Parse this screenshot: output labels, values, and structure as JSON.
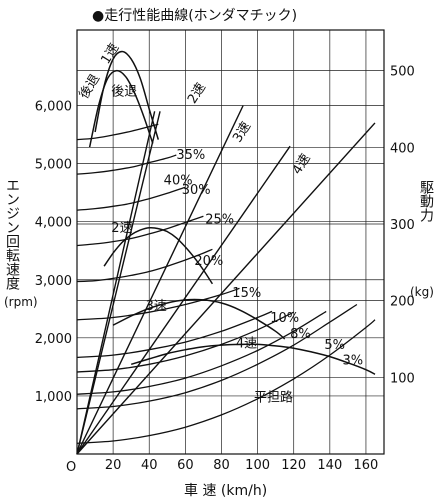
{
  "chart_data": {
    "type": "line",
    "title": "●走行性能曲線(ホンダマチック)",
    "xlabel": "車 速 (km/h)",
    "ylabel_left": "エンジン回転速度",
    "ylabel_left_unit": "(rpm)",
    "ylabel_right": "駆動力",
    "ylabel_right_unit": "(kg)",
    "origin_label": "O",
    "x_axis": {
      "min": 0,
      "max": 170,
      "ticks": [
        20,
        40,
        60,
        80,
        100,
        120,
        140,
        160
      ],
      "tick_labels": [
        "20",
        "40",
        "60",
        "80",
        "100",
        "120",
        "140",
        "160"
      ]
    },
    "y_left_axis": {
      "min": 0,
      "max": 7300,
      "ticks": [
        1000,
        2000,
        3000,
        4000,
        5000,
        6000
      ],
      "tick_labels": [
        "1,000",
        "2,000",
        "3,000",
        "4,000",
        "5,000",
        "6,000"
      ]
    },
    "y_right_axis": {
      "min": 0,
      "max": 553,
      "ticks": [
        100,
        200,
        300,
        400,
        500
      ],
      "tick_labels": [
        "100",
        "200",
        "300",
        "400",
        "500"
      ]
    },
    "grid": true,
    "engine_speed_lines": [
      {
        "name": "1速",
        "label": "1速",
        "label_at": [
          17,
          6700
        ],
        "x": [
          0,
          46
        ],
        "rpm": [
          0,
          5900
        ]
      },
      {
        "name": "後退",
        "label": "後退",
        "label_at": [
          5,
          6100
        ],
        "x": [
          0,
          43
        ],
        "rpm": [
          0,
          5900
        ]
      },
      {
        "name": "2速",
        "label": "2速",
        "label_at": [
          65,
          6020
        ],
        "x": [
          0,
          92
        ],
        "rpm": [
          0,
          6000
        ]
      },
      {
        "name": "3速",
        "label": "3速",
        "label_at": [
          90,
          5350
        ],
        "x": [
          0,
          118
        ],
        "rpm": [
          0,
          5300
        ]
      },
      {
        "name": "4速",
        "label": "4速",
        "label_at": [
          123,
          4800
        ],
        "x": [
          0,
          165
        ],
        "rpm": [
          0,
          5700
        ]
      }
    ],
    "tractive_force_curves": [
      {
        "name": "1速",
        "x": [
          10,
          15,
          20,
          25,
          30,
          35,
          40,
          45
        ],
        "force": [
          420,
          480,
          515,
          525,
          515,
          490,
          450,
          410
        ]
      },
      {
        "name": "後退",
        "label": "後退",
        "label_at": [
          19,
          6170
        ],
        "x": [
          7,
          12,
          17,
          22,
          27,
          32,
          37,
          42
        ],
        "force": [
          400,
          455,
          490,
          500,
          492,
          470,
          440,
          405
        ]
      },
      {
        "name": "2速",
        "label": "2速",
        "label_at": [
          19,
          3820
        ],
        "x": [
          15,
          20,
          25,
          30,
          35,
          40,
          45,
          50,
          55,
          60,
          65,
          70,
          75
        ],
        "force": [
          245,
          262,
          276,
          286,
          292,
          295,
          294,
          290,
          282,
          270,
          256,
          240,
          222
        ]
      },
      {
        "name": "3速",
        "label": "3速",
        "label_at": [
          38,
          2480
        ],
        "x": [
          20,
          30,
          40,
          50,
          60,
          70,
          80,
          90,
          100,
          110,
          115
        ],
        "force": [
          168,
          180,
          190,
          197,
          201,
          201,
          197,
          188,
          175,
          160,
          150
        ]
      },
      {
        "name": "4速",
        "label": "4速",
        "label_at": [
          88,
          1830
        ],
        "x": [
          30,
          40,
          50,
          60,
          70,
          80,
          90,
          100,
          110,
          120,
          130,
          140,
          150,
          160,
          165
        ],
        "force": [
          117,
          124,
          131,
          136,
          140,
          142,
          143,
          143,
          141,
          138,
          133,
          127,
          119,
          110,
          104
        ]
      }
    ],
    "gradient_resistance_curves": [
      {
        "label": "40%",
        "label_at": [
          48,
          4640
        ],
        "x": [
          0,
          10,
          20,
          30,
          40,
          45
        ],
        "force": [
          410,
          412,
          416,
          421,
          427,
          430
        ]
      },
      {
        "label": "35%",
        "label_at": [
          55,
          5080
        ],
        "x": [
          0,
          10,
          20,
          30,
          40,
          50,
          55
        ],
        "force": [
          365,
          367,
          370,
          374,
          380,
          386,
          390
        ]
      },
      {
        "label": "30%",
        "label_at": [
          58,
          4480
        ],
        "x": [
          0,
          10,
          20,
          30,
          40,
          50,
          60
        ],
        "force": [
          318,
          320,
          323,
          327,
          333,
          340,
          348
        ]
      },
      {
        "label": "25%",
        "label_at": [
          71,
          3970
        ],
        "x": [
          0,
          10,
          20,
          30,
          40,
          50,
          60,
          70
        ],
        "force": [
          272,
          274,
          277,
          281,
          287,
          294,
          302,
          310
        ]
      },
      {
        "label": "20%",
        "label_at": [
          65,
          3250
        ],
        "x": [
          0,
          10,
          20,
          30,
          40,
          50,
          60,
          70,
          75
        ],
        "force": [
          225,
          226,
          229,
          233,
          238,
          245,
          253,
          262,
          267
        ]
      },
      {
        "label": "15%",
        "label_at": [
          86,
          2700
        ],
        "x": [
          0,
          20,
          40,
          60,
          80,
          90
        ],
        "force": [
          175,
          178,
          185,
          195,
          208,
          216
        ]
      },
      {
        "label": "10%",
        "label_at": [
          107,
          2270
        ],
        "x": [
          0,
          20,
          40,
          60,
          80,
          100,
          108
        ],
        "force": [
          126,
          129,
          136,
          146,
          160,
          178,
          186
        ]
      },
      {
        "label": "8%",
        "label_at": [
          118,
          2000
        ],
        "x": [
          0,
          20,
          40,
          60,
          80,
          100,
          120
        ],
        "force": [
          107,
          110,
          117,
          128,
          143,
          162,
          185
        ]
      },
      {
        "label": "5%",
        "label_at": [
          137,
          1810
        ],
        "x": [
          0,
          20,
          40,
          60,
          80,
          100,
          120,
          138
        ],
        "force": [
          78,
          81,
          88,
          99,
          115,
          135,
          160,
          186
        ]
      },
      {
        "label": "3%",
        "label_at": [
          147,
          1540
        ],
        "x": [
          0,
          20,
          40,
          60,
          80,
          100,
          120,
          140,
          155
        ],
        "force": [
          59,
          62,
          69,
          80,
          96,
          117,
          142,
          172,
          195
        ]
      },
      {
        "label": "平担路",
        "label_at": [
          98,
          900
        ],
        "x": [
          0,
          20,
          40,
          60,
          80,
          100,
          120,
          140,
          160,
          165
        ],
        "force": [
          14,
          17,
          24,
          35,
          51,
          72,
          98,
          129,
          165,
          175
        ]
      }
    ]
  }
}
